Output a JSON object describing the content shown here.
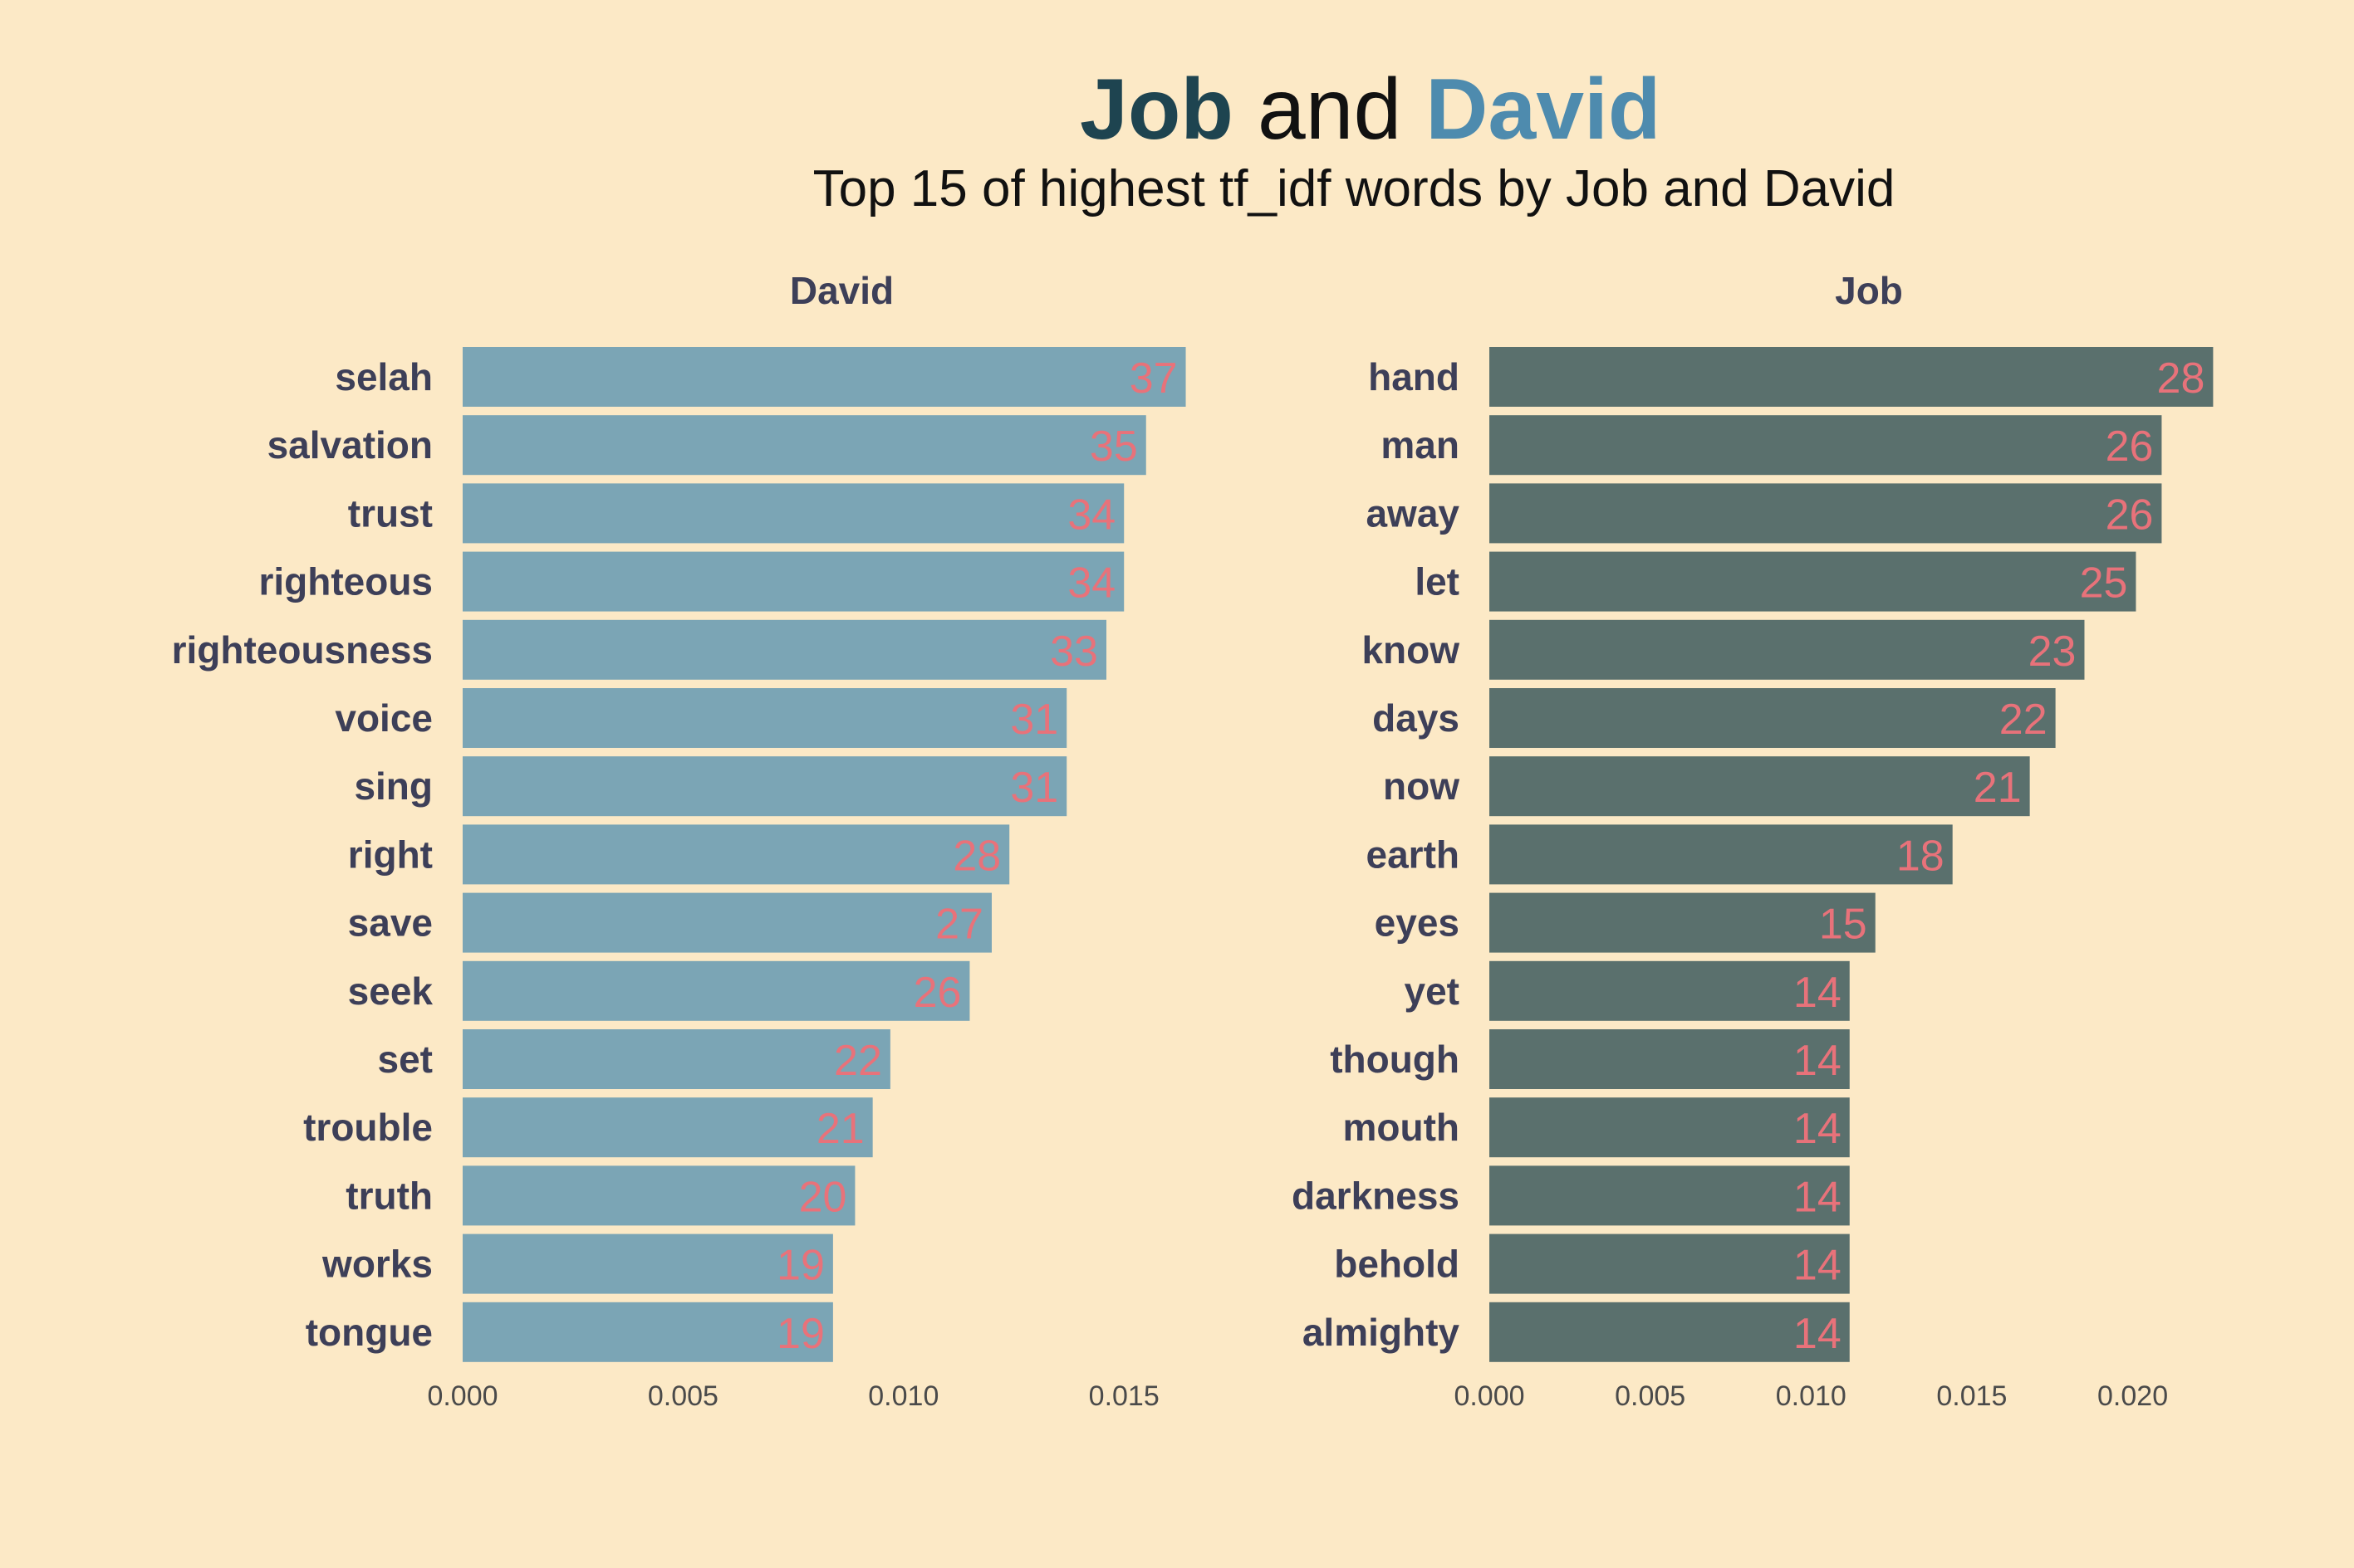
{
  "title": {
    "part1": "Job",
    "part2": "and",
    "part3": "David",
    "subtitle": "Top 15 of highest tf_idf words by Job and David"
  },
  "colors": {
    "background": "#FCE9C6",
    "david_bar": "#7BA5B5",
    "job_bar": "#5A706D",
    "value_label": "#E8727A",
    "word_label": "#3D3F58",
    "title_job": "#1E4450",
    "title_david": "#4E8BAE"
  },
  "chart_data": [
    {
      "type": "bar",
      "orientation": "horizontal",
      "facet": "David",
      "categories": [
        "selah",
        "salvation",
        "trust",
        "righteous",
        "righteousness",
        "voice",
        "sing",
        "right",
        "save",
        "seek",
        "set",
        "trouble",
        "truth",
        "works",
        "tongue"
      ],
      "values": [
        0.0164,
        0.0155,
        0.015,
        0.015,
        0.0146,
        0.0137,
        0.0137,
        0.0124,
        0.012,
        0.0115,
        0.0097,
        0.0093,
        0.0089,
        0.0084,
        0.0084
      ],
      "labels": [
        "37",
        "35",
        "34",
        "34",
        "33",
        "31",
        "31",
        "28",
        "27",
        "26",
        "22",
        "21",
        "20",
        "19",
        "19"
      ],
      "xlim": [
        0,
        0.0172
      ],
      "xticks": [
        "0.000",
        "0.005",
        "0.010",
        "0.015"
      ],
      "xtick_values": [
        0,
        0.005,
        0.01,
        0.015
      ]
    },
    {
      "type": "bar",
      "orientation": "horizontal",
      "facet": "Job",
      "categories": [
        "hand",
        "man",
        "away",
        "let",
        "know",
        "days",
        "now",
        "earth",
        "eyes",
        "yet",
        "though",
        "mouth",
        "darkness",
        "behold",
        "almighty"
      ],
      "values": [
        0.0225,
        0.0209,
        0.0209,
        0.0201,
        0.0185,
        0.0176,
        0.0168,
        0.0144,
        0.012,
        0.0112,
        0.0112,
        0.0112,
        0.0112,
        0.0112,
        0.0112
      ],
      "labels": [
        "28",
        "26",
        "26",
        "25",
        "23",
        "22",
        "21",
        "18",
        "15",
        "14",
        "14",
        "14",
        "14",
        "14",
        "14"
      ],
      "xlim": [
        0,
        0.0236
      ],
      "xticks": [
        "0.000",
        "0.005",
        "0.010",
        "0.015",
        "0.020"
      ],
      "xtick_values": [
        0,
        0.005,
        0.01,
        0.015,
        0.02
      ]
    }
  ]
}
